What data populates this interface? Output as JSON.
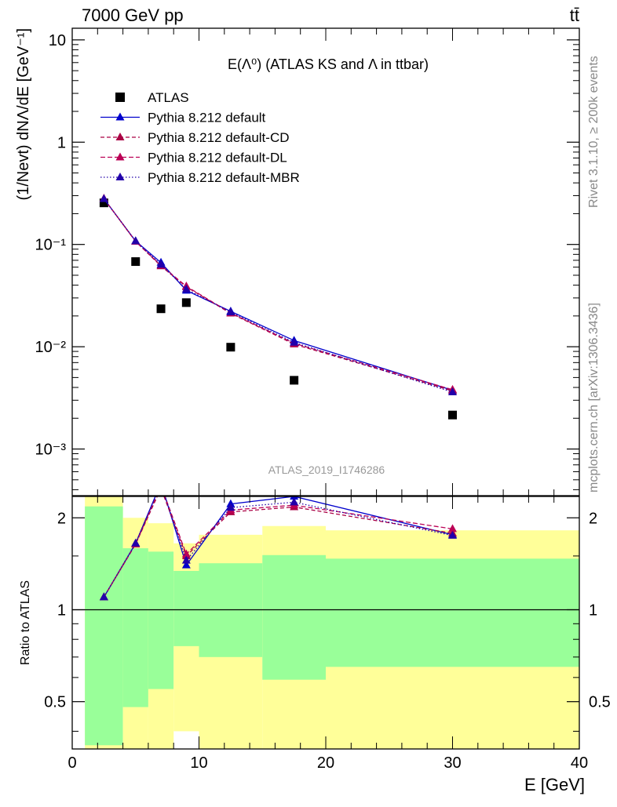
{
  "header": {
    "left": "7000 GeV pp",
    "right": "tt̄"
  },
  "side_text": {
    "rivet": "Rivet 3.1.10, ≥ 200k events",
    "mcplots": "mcplots.cern.ch [arXiv:1306.3436]"
  },
  "colors": {
    "atlas": "#000000",
    "default": "#0000cc",
    "cd": "#aa0044",
    "dl": "#bb0055",
    "mbr": "#2200aa",
    "band_stat": "#99ff99",
    "band_total": "#ffff99"
  },
  "chart_data": [
    {
      "type": "scatter",
      "title": "E(Λ⁰) (ATLAS KS and Λ in ttbar)",
      "ylabel": "(1/Nevt) dNΛ/dE [GeV⁻¹]",
      "analysis_label": "ATLAS_2019_I1746286",
      "yscale": "log",
      "xlim": [
        0,
        40
      ],
      "ylim": [
        0.00035,
        13
      ],
      "ytick_labels": [
        "10",
        "1",
        "10⁻¹",
        "10⁻²",
        "10⁻³"
      ],
      "legend_position": "top-left",
      "series": [
        {
          "name": "ATLAS",
          "marker": "square",
          "x": [
            2.5,
            5,
            7,
            9,
            12.5,
            17.5,
            30
          ],
          "y": [
            0.255,
            0.068,
            0.0235,
            0.027,
            0.0099,
            0.0047,
            0.00215
          ]
        },
        {
          "name": "Pythia 8.212 default",
          "line": "solid",
          "x": [
            2.5,
            5,
            7,
            9,
            12.5,
            17.5,
            30
          ],
          "y": [
            0.28,
            0.108,
            0.0665,
            0.0355,
            0.0222,
            0.0115,
            0.00375
          ]
        },
        {
          "name": "Pythia 8.212 default-CD",
          "line": "dashed",
          "x": [
            2.5,
            5,
            7,
            9,
            12.5,
            17.5,
            30
          ],
          "y": [
            0.28,
            0.107,
            0.0615,
            0.0385,
            0.0212,
            0.0106,
            0.0037
          ]
        },
        {
          "name": "Pythia 8.212 default-DL",
          "line": "dashed",
          "x": [
            2.5,
            5,
            7,
            9,
            12.5,
            17.5,
            30
          ],
          "y": [
            0.281,
            0.107,
            0.0625,
            0.039,
            0.0214,
            0.0108,
            0.0038
          ]
        },
        {
          "name": "Pythia 8.212 default-MBR",
          "line": "dotted",
          "x": [
            2.5,
            5,
            7,
            9,
            12.5,
            17.5,
            30
          ],
          "y": [
            0.279,
            0.108,
            0.0635,
            0.0365,
            0.0218,
            0.011,
            0.0036
          ]
        }
      ]
    },
    {
      "type": "line",
      "xlabel": "E [GeV]",
      "ylabel": "Ratio to ATLAS",
      "yscale": "log",
      "xlim": [
        0,
        40
      ],
      "ylim": [
        0.35,
        2.35
      ],
      "xtick_labels": [
        "0",
        "10",
        "20",
        "30",
        "40"
      ],
      "ytick_labels": [
        "0.5",
        "1",
        "2"
      ],
      "bands": {
        "bins": [
          [
            1,
            4
          ],
          [
            4,
            6
          ],
          [
            6,
            8
          ],
          [
            8,
            10
          ],
          [
            10,
            15
          ],
          [
            15,
            20
          ],
          [
            20,
            40
          ]
        ],
        "stat_upper": [
          2.18,
          1.59,
          1.55,
          1.34,
          1.42,
          1.51,
          1.47
        ],
        "stat_lower": [
          0.36,
          0.48,
          0.55,
          0.76,
          0.7,
          0.59,
          0.65
        ],
        "total_upper": [
          2.35,
          2.0,
          1.92,
          1.65,
          1.76,
          1.88,
          1.82
        ],
        "total_lower": [
          0.33,
          0.33,
          0.33,
          0.4,
          0.33,
          0.33,
          0.33
        ]
      },
      "series": [
        {
          "name": "Pythia 8.212 default",
          "x": [
            2.5,
            5,
            7,
            9,
            12.5,
            17.5,
            30
          ],
          "y": [
            1.1,
            1.65,
            2.6,
            1.4,
            2.22,
            2.35,
            1.76
          ]
        },
        {
          "name": "Pythia 8.212 default-CD",
          "x": [
            2.5,
            5,
            7,
            9,
            12.5,
            17.5,
            30
          ],
          "y": [
            1.1,
            1.64,
            2.5,
            1.5,
            2.09,
            2.17,
            1.78
          ]
        },
        {
          "name": "Pythia 8.212 default-DL",
          "x": [
            2.5,
            5,
            7,
            9,
            12.5,
            17.5,
            30
          ],
          "y": [
            1.1,
            1.64,
            2.55,
            1.52,
            2.12,
            2.2,
            1.84
          ]
        },
        {
          "name": "Pythia 8.212 default-MBR",
          "x": [
            2.5,
            5,
            7,
            9,
            12.5,
            17.5,
            30
          ],
          "y": [
            1.1,
            1.65,
            2.58,
            1.45,
            2.16,
            2.25,
            1.75
          ]
        }
      ]
    }
  ]
}
